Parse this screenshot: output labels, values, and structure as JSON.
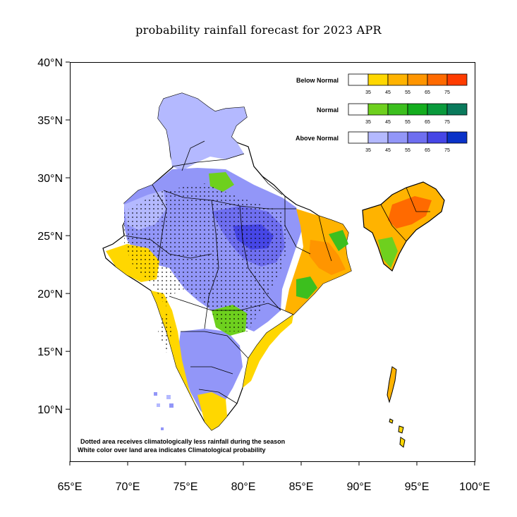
{
  "title": "probability rainfall forecast for 2023 APR",
  "axes": {
    "x_ticks": [
      "65°E",
      "70°E",
      "75°E",
      "80°E",
      "85°E",
      "90°E",
      "95°E",
      "100°E"
    ],
    "y_ticks": [
      "40°N",
      "35°N",
      "30°N",
      "25°N",
      "20°N",
      "15°N",
      "10°N"
    ],
    "lon_range": [
      65,
      100
    ],
    "lat_range": [
      5.5,
      40
    ]
  },
  "legend": [
    {
      "name": "Below Normal",
      "colors": [
        "#ffffff",
        "#ffd700",
        "#ffb300",
        "#ff9500",
        "#ff6a00",
        "#ff3c00"
      ],
      "ticks": [
        "35",
        "45",
        "55",
        "65",
        "75"
      ]
    },
    {
      "name": "Normal",
      "colors": [
        "#ffffff",
        "#6ed01e",
        "#3cbf1e",
        "#14ad1e",
        "#0a9a3c",
        "#0a7a5c"
      ],
      "ticks": [
        "35",
        "45",
        "55",
        "65",
        "75"
      ]
    },
    {
      "name": "Above Normal",
      "colors": [
        "#ffffff",
        "#b4b9ff",
        "#9296f8",
        "#6e6ef0",
        "#4646e6",
        "#0a32c8"
      ],
      "ticks": [
        "35",
        "45",
        "55",
        "65",
        "75"
      ]
    }
  ],
  "notes": [
    "Dotted area receives climatologically less rainfall during the season",
    "White color over land area indicates Climatological probability"
  ]
}
